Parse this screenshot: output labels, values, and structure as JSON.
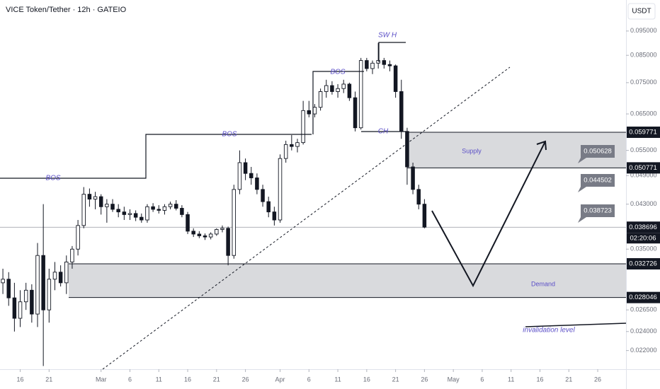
{
  "title": "VICE Token/Tether · 12h · GATEIO",
  "currency": "USDT",
  "annotations": {
    "bos": [
      "BOS",
      "BOS",
      "BOS"
    ],
    "swing_high": "SW H",
    "change": "CH",
    "supply": "Supply",
    "demand": "Demand",
    "invalidation": "invalidation level"
  },
  "countdown": "02:20:06",
  "chart_data": {
    "type": "candlestick",
    "log_scale": true,
    "up_color": "#ffffff",
    "down_color": "#131722",
    "border_color": "#131722",
    "x": [
      44,
      45,
      46,
      47,
      48,
      49,
      50,
      51,
      52,
      53,
      54,
      55,
      56,
      57,
      58,
      59,
      60,
      61,
      62,
      63,
      64,
      65,
      66,
      67,
      68,
      69,
      70,
      71,
      72,
      73,
      74,
      75,
      76,
      77,
      78,
      79,
      80,
      81,
      82,
      83,
      84,
      85,
      86,
      87,
      88,
      89,
      90,
      91,
      92,
      93,
      94,
      95,
      96,
      97,
      98,
      99,
      100,
      101,
      102,
      103,
      104,
      105,
      106,
      107,
      108,
      109,
      110,
      111,
      112,
      113,
      114,
      115,
      116,
      117
    ],
    "open": [
      0.03,
      0.0305,
      0.028,
      0.0255,
      0.0275,
      0.029,
      0.026,
      0.034,
      0.0265,
      0.0305,
      0.0315,
      0.03,
      0.033,
      0.035,
      0.039,
      0.045,
      0.044,
      0.0445,
      0.0425,
      0.043,
      0.042,
      0.0415,
      0.041,
      0.0412,
      0.0405,
      0.04,
      0.0425,
      0.042,
      0.0418,
      0.0425,
      0.043,
      0.0422,
      0.041,
      0.038,
      0.0375,
      0.0372,
      0.037,
      0.0375,
      0.0383,
      0.0385,
      0.034,
      0.046,
      0.052,
      0.0495,
      0.0485,
      0.046,
      0.0435,
      0.0415,
      0.04,
      0.053,
      0.0565,
      0.056,
      0.057,
      0.066,
      0.065,
      0.067,
      0.072,
      0.074,
      0.072,
      0.073,
      0.0745,
      0.07,
      0.061,
      0.083,
      0.08,
      0.082,
      0.083,
      0.0815,
      0.081,
      0.072,
      0.06,
      0.051,
      0.046,
      0.043
    ],
    "high": [
      0.032,
      0.0315,
      0.03,
      0.029,
      0.03,
      0.0298,
      0.036,
      0.043,
      0.032,
      0.033,
      0.0325,
      0.034,
      0.0355,
      0.04,
      0.0465,
      0.0462,
      0.0455,
      0.045,
      0.044,
      0.044,
      0.043,
      0.0425,
      0.042,
      0.0418,
      0.0412,
      0.043,
      0.0432,
      0.0428,
      0.043,
      0.0435,
      0.0438,
      0.0428,
      0.0415,
      0.0385,
      0.038,
      0.0376,
      0.0378,
      0.0385,
      0.039,
      0.0388,
      0.047,
      0.055,
      0.053,
      0.051,
      0.0495,
      0.047,
      0.0445,
      0.0425,
      0.054,
      0.0575,
      0.059,
      0.058,
      0.069,
      0.069,
      0.068,
      0.073,
      0.076,
      0.0755,
      0.0745,
      0.076,
      0.075,
      0.072,
      0.084,
      0.084,
      0.083,
      0.09,
      0.084,
      0.083,
      0.0815,
      0.076,
      0.061,
      0.052,
      0.047,
      0.044
    ],
    "low": [
      0.0285,
      0.027,
      0.024,
      0.0245,
      0.0265,
      0.025,
      0.0245,
      0.0205,
      0.025,
      0.029,
      0.0295,
      0.0285,
      0.032,
      0.034,
      0.0385,
      0.0425,
      0.042,
      0.041,
      0.0395,
      0.0415,
      0.0405,
      0.04,
      0.04,
      0.0398,
      0.0395,
      0.0395,
      0.0415,
      0.0412,
      0.041,
      0.042,
      0.0418,
      0.0405,
      0.0375,
      0.037,
      0.0368,
      0.0365,
      0.0366,
      0.0372,
      0.0378,
      0.0325,
      0.0335,
      0.045,
      0.048,
      0.047,
      0.045,
      0.0425,
      0.0405,
      0.039,
      0.0395,
      0.052,
      0.055,
      0.0545,
      0.0565,
      0.064,
      0.064,
      0.066,
      0.07,
      0.071,
      0.07,
      0.0715,
      0.069,
      0.06,
      0.0605,
      0.079,
      0.078,
      0.08,
      0.08,
      0.079,
      0.07,
      0.058,
      0.047,
      0.045,
      0.042,
      0.0385
    ],
    "close": [
      0.0305,
      0.028,
      0.0255,
      0.0275,
      0.029,
      0.026,
      0.034,
      0.0265,
      0.0305,
      0.0315,
      0.03,
      0.033,
      0.035,
      0.039,
      0.045,
      0.044,
      0.0445,
      0.0425,
      0.043,
      0.042,
      0.0415,
      0.041,
      0.0412,
      0.0405,
      0.04,
      0.0425,
      0.042,
      0.0418,
      0.0425,
      0.043,
      0.0422,
      0.041,
      0.038,
      0.0375,
      0.0372,
      0.037,
      0.0375,
      0.0383,
      0.0385,
      0.034,
      0.046,
      0.052,
      0.0495,
      0.0485,
      0.046,
      0.0435,
      0.0415,
      0.04,
      0.053,
      0.0565,
      0.056,
      0.057,
      0.066,
      0.065,
      0.067,
      0.072,
      0.074,
      0.072,
      0.073,
      0.0745,
      0.07,
      0.061,
      0.083,
      0.08,
      0.082,
      0.083,
      0.0815,
      0.081,
      0.072,
      0.06,
      0.051,
      0.046,
      0.043,
      0.0387
    ],
    "xlim": [
      43.5,
      151.9
    ],
    "xticks": [
      {
        "value": 47,
        "label": "16"
      },
      {
        "value": 52,
        "label": "21"
      },
      {
        "value": 61,
        "label": "Mar"
      },
      {
        "value": 66,
        "label": "6"
      },
      {
        "value": 71,
        "label": "11"
      },
      {
        "value": 76,
        "label": "16"
      },
      {
        "value": 81,
        "label": "21"
      },
      {
        "value": 86,
        "label": "26"
      },
      {
        "value": 92,
        "label": "Apr"
      },
      {
        "value": 97,
        "label": "6"
      },
      {
        "value": 102,
        "label": "11"
      },
      {
        "value": 107,
        "label": "16"
      },
      {
        "value": 112,
        "label": "21"
      },
      {
        "value": 117,
        "label": "26"
      },
      {
        "value": 122,
        "label": "May"
      },
      {
        "value": 127,
        "label": "6"
      },
      {
        "value": 132,
        "label": "11"
      },
      {
        "value": 137,
        "label": "16"
      },
      {
        "value": 142,
        "label": "21"
      },
      {
        "value": 147,
        "label": "26"
      }
    ],
    "ylim": [
      0.0202,
      0.1095
    ],
    "yticks": [
      {
        "value": 0.095,
        "label": "0.095000"
      },
      {
        "value": 0.085,
        "label": "0.085000"
      },
      {
        "value": 0.075,
        "label": "0.075000"
      },
      {
        "value": 0.065,
        "label": "0.065000"
      },
      {
        "value": 0.055,
        "label": "0.055000"
      },
      {
        "value": 0.049,
        "label": "0.049000"
      },
      {
        "value": 0.043,
        "label": "0.043000"
      },
      {
        "value": 0.035,
        "label": "0.035000"
      },
      {
        "value": 0.0265,
        "label": "0.026500"
      },
      {
        "value": 0.024,
        "label": "0.024000"
      },
      {
        "value": 0.022,
        "label": "0.022000"
      }
    ],
    "price_levels": [
      0.059771,
      0.050771,
      0.038696,
      0.032726,
      0.028046
    ],
    "targets": [
      0.050628,
      0.044502,
      0.038723
    ]
  }
}
